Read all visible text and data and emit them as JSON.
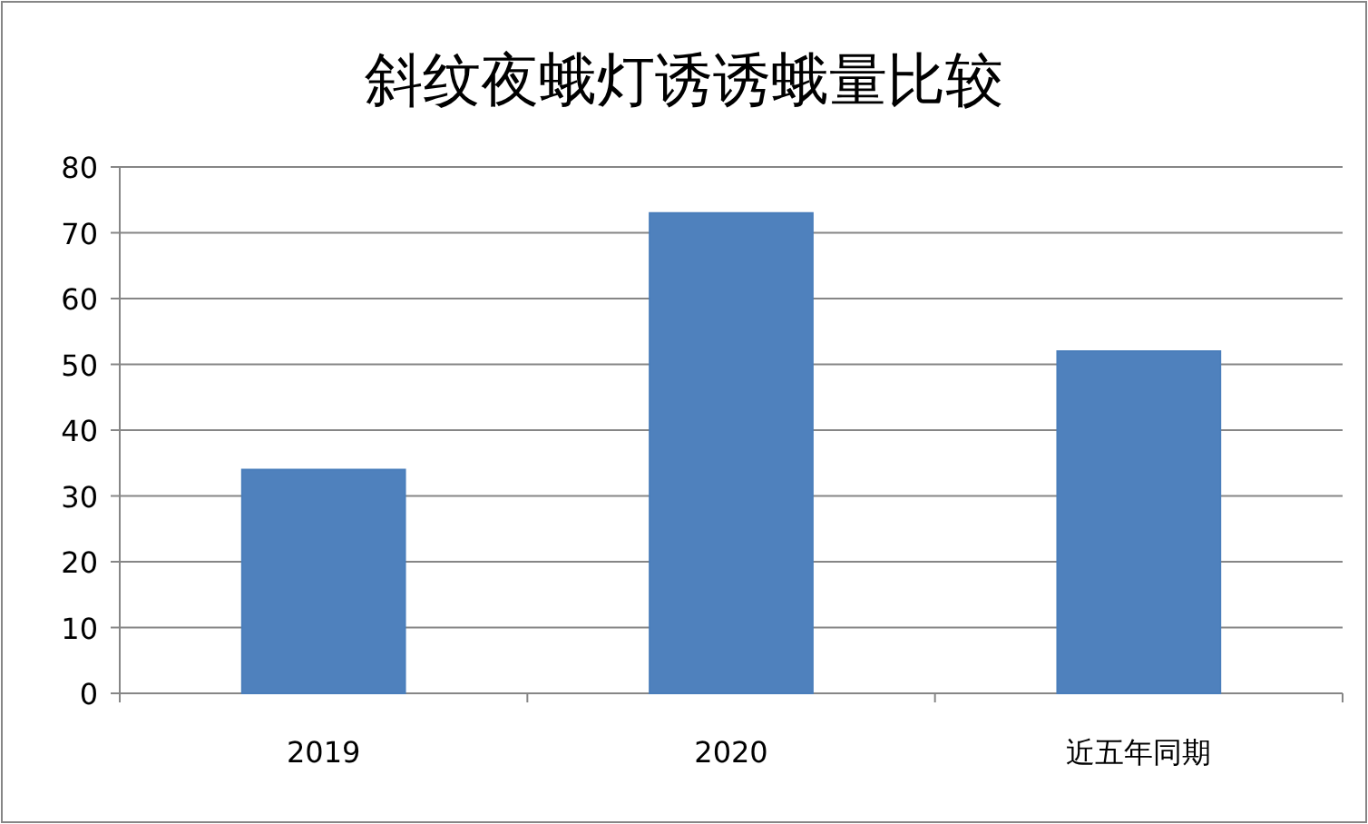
{
  "chart_data": {
    "type": "bar",
    "title": "斜纹夜蛾灯诱诱蛾量比较",
    "categories": [
      "2019",
      "2020",
      "近五年同期"
    ],
    "values": [
      34,
      73,
      52
    ],
    "color": "#4f81bd",
    "ylim": [
      0,
      80
    ],
    "yticks": [
      0,
      10,
      20,
      30,
      40,
      50,
      60,
      70,
      80
    ],
    "grid": "y"
  }
}
